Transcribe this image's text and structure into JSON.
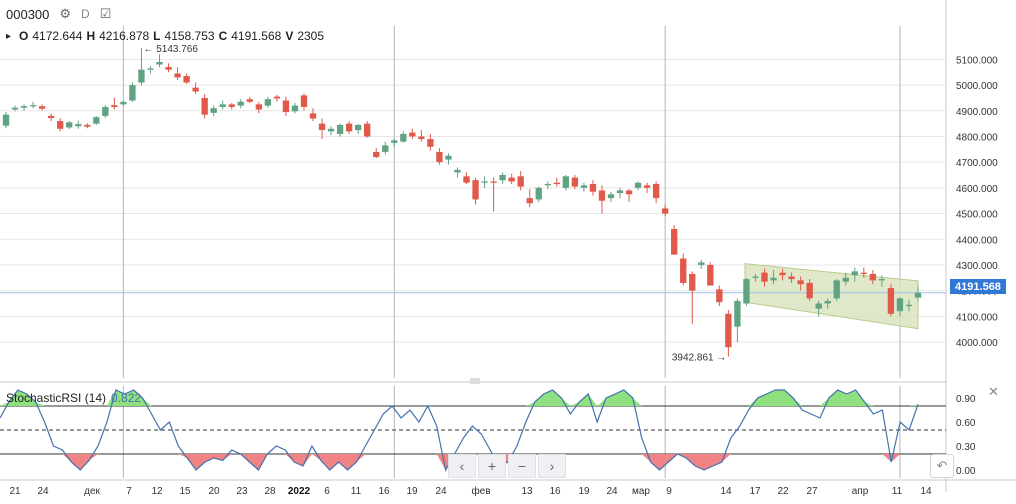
{
  "header": {
    "symbol": "000300",
    "interval": "D",
    "gear_icon": "gear-icon",
    "compare_icon": "compare-icon"
  },
  "ohlc": {
    "o_label": "O",
    "o_value": "4172.644",
    "h_label": "H",
    "h_value": "4216.878",
    "l_label": "L",
    "l_value": "4158.753",
    "c_label": "C",
    "c_value": "4191.568",
    "v_label": "V",
    "v_value": "2305"
  },
  "annotations": {
    "high_label": "← 5143.766",
    "low_label": "3942.861 →"
  },
  "last_price": "4191.568",
  "indicator": {
    "name": "StochasticRSI (14)",
    "value": "0.822"
  },
  "nav": {
    "prev": "‹",
    "zoom_in": "+",
    "zoom_out": "−",
    "next": "›"
  },
  "colors": {
    "up": "#5fa382",
    "down": "#e0594a",
    "grid": "#e6e6e6",
    "channel_fill": "#d7e3bd",
    "channel_stroke": "#b9cc8c",
    "accent": "#2f78d6",
    "rsi_line": "#4472b0",
    "rsi_over": "#8fe07f",
    "rsi_under": "#f08383"
  },
  "chart_data": [
    {
      "type": "candlestick",
      "y_axis_ticks": [
        "5100.000",
        "5000.000",
        "4900.000",
        "4800.000",
        "4700.000",
        "4600.000",
        "4500.000",
        "4400.000",
        "4300.000",
        "4200.000",
        "4100.000",
        "4000.000"
      ],
      "x_axis_ticks": [
        "21",
        "24",
        "дек",
        "7",
        "12",
        "15",
        "20",
        "23",
        "28",
        "2022",
        "6",
        "11",
        "16",
        "19",
        "24",
        "фев",
        "13",
        "16",
        "19",
        "24",
        "мар",
        "9",
        "14",
        "17",
        "22",
        "27",
        "апр",
        "11",
        "14"
      ],
      "ylim": [
        3860,
        5230
      ],
      "candles": [
        {
          "o": 4842,
          "h": 4895,
          "l": 4832,
          "c": 4885
        },
        {
          "o": 4905,
          "h": 4920,
          "l": 4898,
          "c": 4912
        },
        {
          "o": 4912,
          "h": 4925,
          "l": 4900,
          "c": 4918
        },
        {
          "o": 4920,
          "h": 4935,
          "l": 4910,
          "c": 4922
        },
        {
          "o": 4918,
          "h": 4925,
          "l": 4900,
          "c": 4908
        },
        {
          "o": 4880,
          "h": 4890,
          "l": 4860,
          "c": 4872
        },
        {
          "o": 4860,
          "h": 4872,
          "l": 4820,
          "c": 4830
        },
        {
          "o": 4835,
          "h": 4860,
          "l": 4828,
          "c": 4855
        },
        {
          "o": 4840,
          "h": 4862,
          "l": 4830,
          "c": 4848
        },
        {
          "o": 4845,
          "h": 4852,
          "l": 4832,
          "c": 4838
        },
        {
          "o": 4850,
          "h": 4880,
          "l": 4845,
          "c": 4875
        },
        {
          "o": 4880,
          "h": 4922,
          "l": 4872,
          "c": 4915
        },
        {
          "o": 4922,
          "h": 4950,
          "l": 4905,
          "c": 4915
        },
        {
          "o": 4925,
          "h": 4940,
          "l": 4918,
          "c": 4935
        },
        {
          "o": 4940,
          "h": 5010,
          "l": 4935,
          "c": 5000
        },
        {
          "o": 5010,
          "h": 5143.766,
          "l": 4998,
          "c": 5060
        },
        {
          "o": 5060,
          "h": 5075,
          "l": 5045,
          "c": 5065
        },
        {
          "o": 5080,
          "h": 5120,
          "l": 5070,
          "c": 5090
        },
        {
          "o": 5070,
          "h": 5085,
          "l": 5050,
          "c": 5060
        },
        {
          "o": 5045,
          "h": 5070,
          "l": 5020,
          "c": 5030
        },
        {
          "o": 5035,
          "h": 5045,
          "l": 5005,
          "c": 5010
        },
        {
          "o": 4990,
          "h": 5010,
          "l": 4965,
          "c": 4975
        },
        {
          "o": 4950,
          "h": 4965,
          "l": 4870,
          "c": 4885
        },
        {
          "o": 4892,
          "h": 4920,
          "l": 4880,
          "c": 4910
        },
        {
          "o": 4915,
          "h": 4940,
          "l": 4905,
          "c": 4925
        },
        {
          "o": 4925,
          "h": 4930,
          "l": 4905,
          "c": 4915
        },
        {
          "o": 4920,
          "h": 4945,
          "l": 4910,
          "c": 4935
        },
        {
          "o": 4945,
          "h": 4955,
          "l": 4930,
          "c": 4935
        },
        {
          "o": 4925,
          "h": 4935,
          "l": 4890,
          "c": 4905
        },
        {
          "o": 4920,
          "h": 4955,
          "l": 4912,
          "c": 4945
        },
        {
          "o": 4955,
          "h": 4962,
          "l": 4935,
          "c": 4948
        },
        {
          "o": 4940,
          "h": 4955,
          "l": 4880,
          "c": 4895
        },
        {
          "o": 4898,
          "h": 4930,
          "l": 4890,
          "c": 4920
        },
        {
          "o": 4960,
          "h": 4968,
          "l": 4900,
          "c": 4915
        },
        {
          "o": 4890,
          "h": 4910,
          "l": 4860,
          "c": 4870
        },
        {
          "o": 4850,
          "h": 4870,
          "l": 4790,
          "c": 4825
        },
        {
          "o": 4820,
          "h": 4840,
          "l": 4805,
          "c": 4830
        },
        {
          "o": 4810,
          "h": 4850,
          "l": 4800,
          "c": 4845
        },
        {
          "o": 4850,
          "h": 4860,
          "l": 4810,
          "c": 4820
        },
        {
          "o": 4825,
          "h": 4848,
          "l": 4810,
          "c": 4845
        },
        {
          "o": 4850,
          "h": 4860,
          "l": 4795,
          "c": 4800
        },
        {
          "o": 4740,
          "h": 4755,
          "l": 4715,
          "c": 4720
        },
        {
          "o": 4740,
          "h": 4780,
          "l": 4730,
          "c": 4765
        },
        {
          "o": 4775,
          "h": 4790,
          "l": 4760,
          "c": 4785
        },
        {
          "o": 4780,
          "h": 4820,
          "l": 4775,
          "c": 4810
        },
        {
          "o": 4815,
          "h": 4830,
          "l": 4790,
          "c": 4800
        },
        {
          "o": 4800,
          "h": 4825,
          "l": 4780,
          "c": 4790
        },
        {
          "o": 4790,
          "h": 4810,
          "l": 4745,
          "c": 4760
        },
        {
          "o": 4740,
          "h": 4755,
          "l": 4690,
          "c": 4700
        },
        {
          "o": 4710,
          "h": 4735,
          "l": 4690,
          "c": 4725
        },
        {
          "o": 4660,
          "h": 4680,
          "l": 4640,
          "c": 4670
        },
        {
          "o": 4645,
          "h": 4660,
          "l": 4615,
          "c": 4620
        },
        {
          "o": 4630,
          "h": 4640,
          "l": 4535,
          "c": 4555
        },
        {
          "o": 4620,
          "h": 4645,
          "l": 4600,
          "c": 4625
        },
        {
          "o": 4625,
          "h": 4640,
          "l": 4508,
          "c": 4620
        },
        {
          "o": 4630,
          "h": 4660,
          "l": 4615,
          "c": 4650
        },
        {
          "o": 4640,
          "h": 4655,
          "l": 4615,
          "c": 4625
        },
        {
          "o": 4645,
          "h": 4665,
          "l": 4590,
          "c": 4605
        },
        {
          "o": 4560,
          "h": 4595,
          "l": 4525,
          "c": 4540
        },
        {
          "o": 4555,
          "h": 4605,
          "l": 4545,
          "c": 4600
        },
        {
          "o": 4610,
          "h": 4625,
          "l": 4595,
          "c": 4615
        },
        {
          "o": 4620,
          "h": 4640,
          "l": 4605,
          "c": 4615
        },
        {
          "o": 4600,
          "h": 4650,
          "l": 4590,
          "c": 4645
        },
        {
          "o": 4640,
          "h": 4650,
          "l": 4595,
          "c": 4605
        },
        {
          "o": 4600,
          "h": 4620,
          "l": 4585,
          "c": 4610
        },
        {
          "o": 4615,
          "h": 4630,
          "l": 4570,
          "c": 4585
        },
        {
          "o": 4590,
          "h": 4610,
          "l": 4500,
          "c": 4550
        },
        {
          "o": 4560,
          "h": 4585,
          "l": 4545,
          "c": 4575
        },
        {
          "o": 4580,
          "h": 4600,
          "l": 4560,
          "c": 4590
        },
        {
          "o": 4590,
          "h": 4595,
          "l": 4545,
          "c": 4575
        },
        {
          "o": 4600,
          "h": 4625,
          "l": 4590,
          "c": 4620
        },
        {
          "o": 4610,
          "h": 4620,
          "l": 4580,
          "c": 4600
        },
        {
          "o": 4615,
          "h": 4625,
          "l": 4540,
          "c": 4560
        },
        {
          "o": 4520,
          "h": 4535,
          "l": 4490,
          "c": 4500
        },
        {
          "o": 4440,
          "h": 4455,
          "l": 4340,
          "c": 4340
        },
        {
          "o": 4325,
          "h": 4345,
          "l": 4220,
          "c": 4230
        },
        {
          "o": 4265,
          "h": 4275,
          "l": 4070,
          "c": 4200
        },
        {
          "o": 4300,
          "h": 4320,
          "l": 4285,
          "c": 4310
        },
        {
          "o": 4300,
          "h": 4310,
          "l": 4220,
          "c": 4220
        },
        {
          "o": 4205,
          "h": 4220,
          "l": 4140,
          "c": 4155
        },
        {
          "o": 4110,
          "h": 4125,
          "l": 3942.861,
          "c": 3980
        },
        {
          "o": 4060,
          "h": 4170,
          "l": 4000,
          "c": 4160
        },
        {
          "o": 4150,
          "h": 4250,
          "l": 4140,
          "c": 4245
        },
        {
          "o": 4250,
          "h": 4265,
          "l": 4235,
          "c": 4255
        },
        {
          "o": 4270,
          "h": 4285,
          "l": 4215,
          "c": 4235
        },
        {
          "o": 4240,
          "h": 4280,
          "l": 4225,
          "c": 4250
        },
        {
          "o": 4270,
          "h": 4285,
          "l": 4240,
          "c": 4260
        },
        {
          "o": 4255,
          "h": 4270,
          "l": 4230,
          "c": 4245
        },
        {
          "o": 4240,
          "h": 4255,
          "l": 4200,
          "c": 4225
        },
        {
          "o": 4230,
          "h": 4245,
          "l": 4160,
          "c": 4170
        },
        {
          "o": 4130,
          "h": 4160,
          "l": 4100,
          "c": 4150
        },
        {
          "o": 4150,
          "h": 4170,
          "l": 4130,
          "c": 4160
        },
        {
          "o": 4170,
          "h": 4245,
          "l": 4160,
          "c": 4240
        },
        {
          "o": 4235,
          "h": 4270,
          "l": 4220,
          "c": 4250
        },
        {
          "o": 4260,
          "h": 4290,
          "l": 4235,
          "c": 4275
        },
        {
          "o": 4270,
          "h": 4290,
          "l": 4250,
          "c": 4265
        },
        {
          "o": 4265,
          "h": 4280,
          "l": 4225,
          "c": 4240
        },
        {
          "o": 4240,
          "h": 4260,
          "l": 4215,
          "c": 4245
        },
        {
          "o": 4210,
          "h": 4225,
          "l": 4100,
          "c": 4110
        },
        {
          "o": 4120,
          "h": 4175,
          "l": 4100,
          "c": 4170
        },
        {
          "o": 4140,
          "h": 4165,
          "l": 4120,
          "c": 4145
        },
        {
          "o": 4172.644,
          "h": 4216.878,
          "l": 4158.753,
          "c": 4191.568
        }
      ],
      "channel": {
        "upper_start": 4305,
        "upper_end": 4238,
        "lower_start": 4155,
        "lower_end": 4052
      }
    },
    {
      "type": "line",
      "title": "StochasticRSI (14)",
      "y_axis_ticks": [
        "0.90",
        "0.60",
        "0.30",
        "0.00"
      ],
      "ylim": [
        -0.1,
        1.05
      ],
      "levels": {
        "upper": 0.8,
        "mid": 0.5,
        "lower": 0.2
      },
      "values": [
        0.65,
        0.85,
        1.0,
        0.95,
        0.85,
        0.6,
        0.3,
        0.25,
        0.1,
        0.0,
        0.12,
        0.3,
        0.6,
        1.0,
        0.95,
        1.0,
        0.9,
        0.7,
        0.5,
        0.6,
        0.3,
        0.15,
        0.0,
        0.1,
        0.15,
        0.12,
        0.25,
        0.2,
        0.1,
        0.0,
        0.2,
        0.3,
        0.25,
        0.1,
        0.05,
        0.3,
        0.12,
        0.0,
        0.1,
        0.0,
        0.1,
        0.3,
        0.5,
        0.7,
        0.8,
        0.65,
        0.75,
        0.6,
        0.8,
        0.55,
        0.0,
        0.2,
        0.4,
        0.55,
        0.45,
        0.25,
        0.05,
        0.1,
        0.3,
        0.6,
        0.85,
        0.95,
        1.0,
        0.9,
        0.7,
        0.85,
        0.95,
        0.6,
        0.9,
        0.95,
        1.0,
        0.9,
        0.4,
        0.1,
        0.0,
        0.1,
        0.2,
        0.15,
        0.05,
        0.0,
        0.05,
        0.1,
        0.4,
        0.55,
        0.75,
        0.9,
        0.95,
        1.0,
        1.0,
        0.9,
        0.75,
        0.7,
        0.65,
        0.9,
        1.0,
        0.95,
        1.0,
        0.85,
        0.7,
        0.75,
        0.1,
        0.6,
        0.5,
        0.82
      ]
    }
  ]
}
